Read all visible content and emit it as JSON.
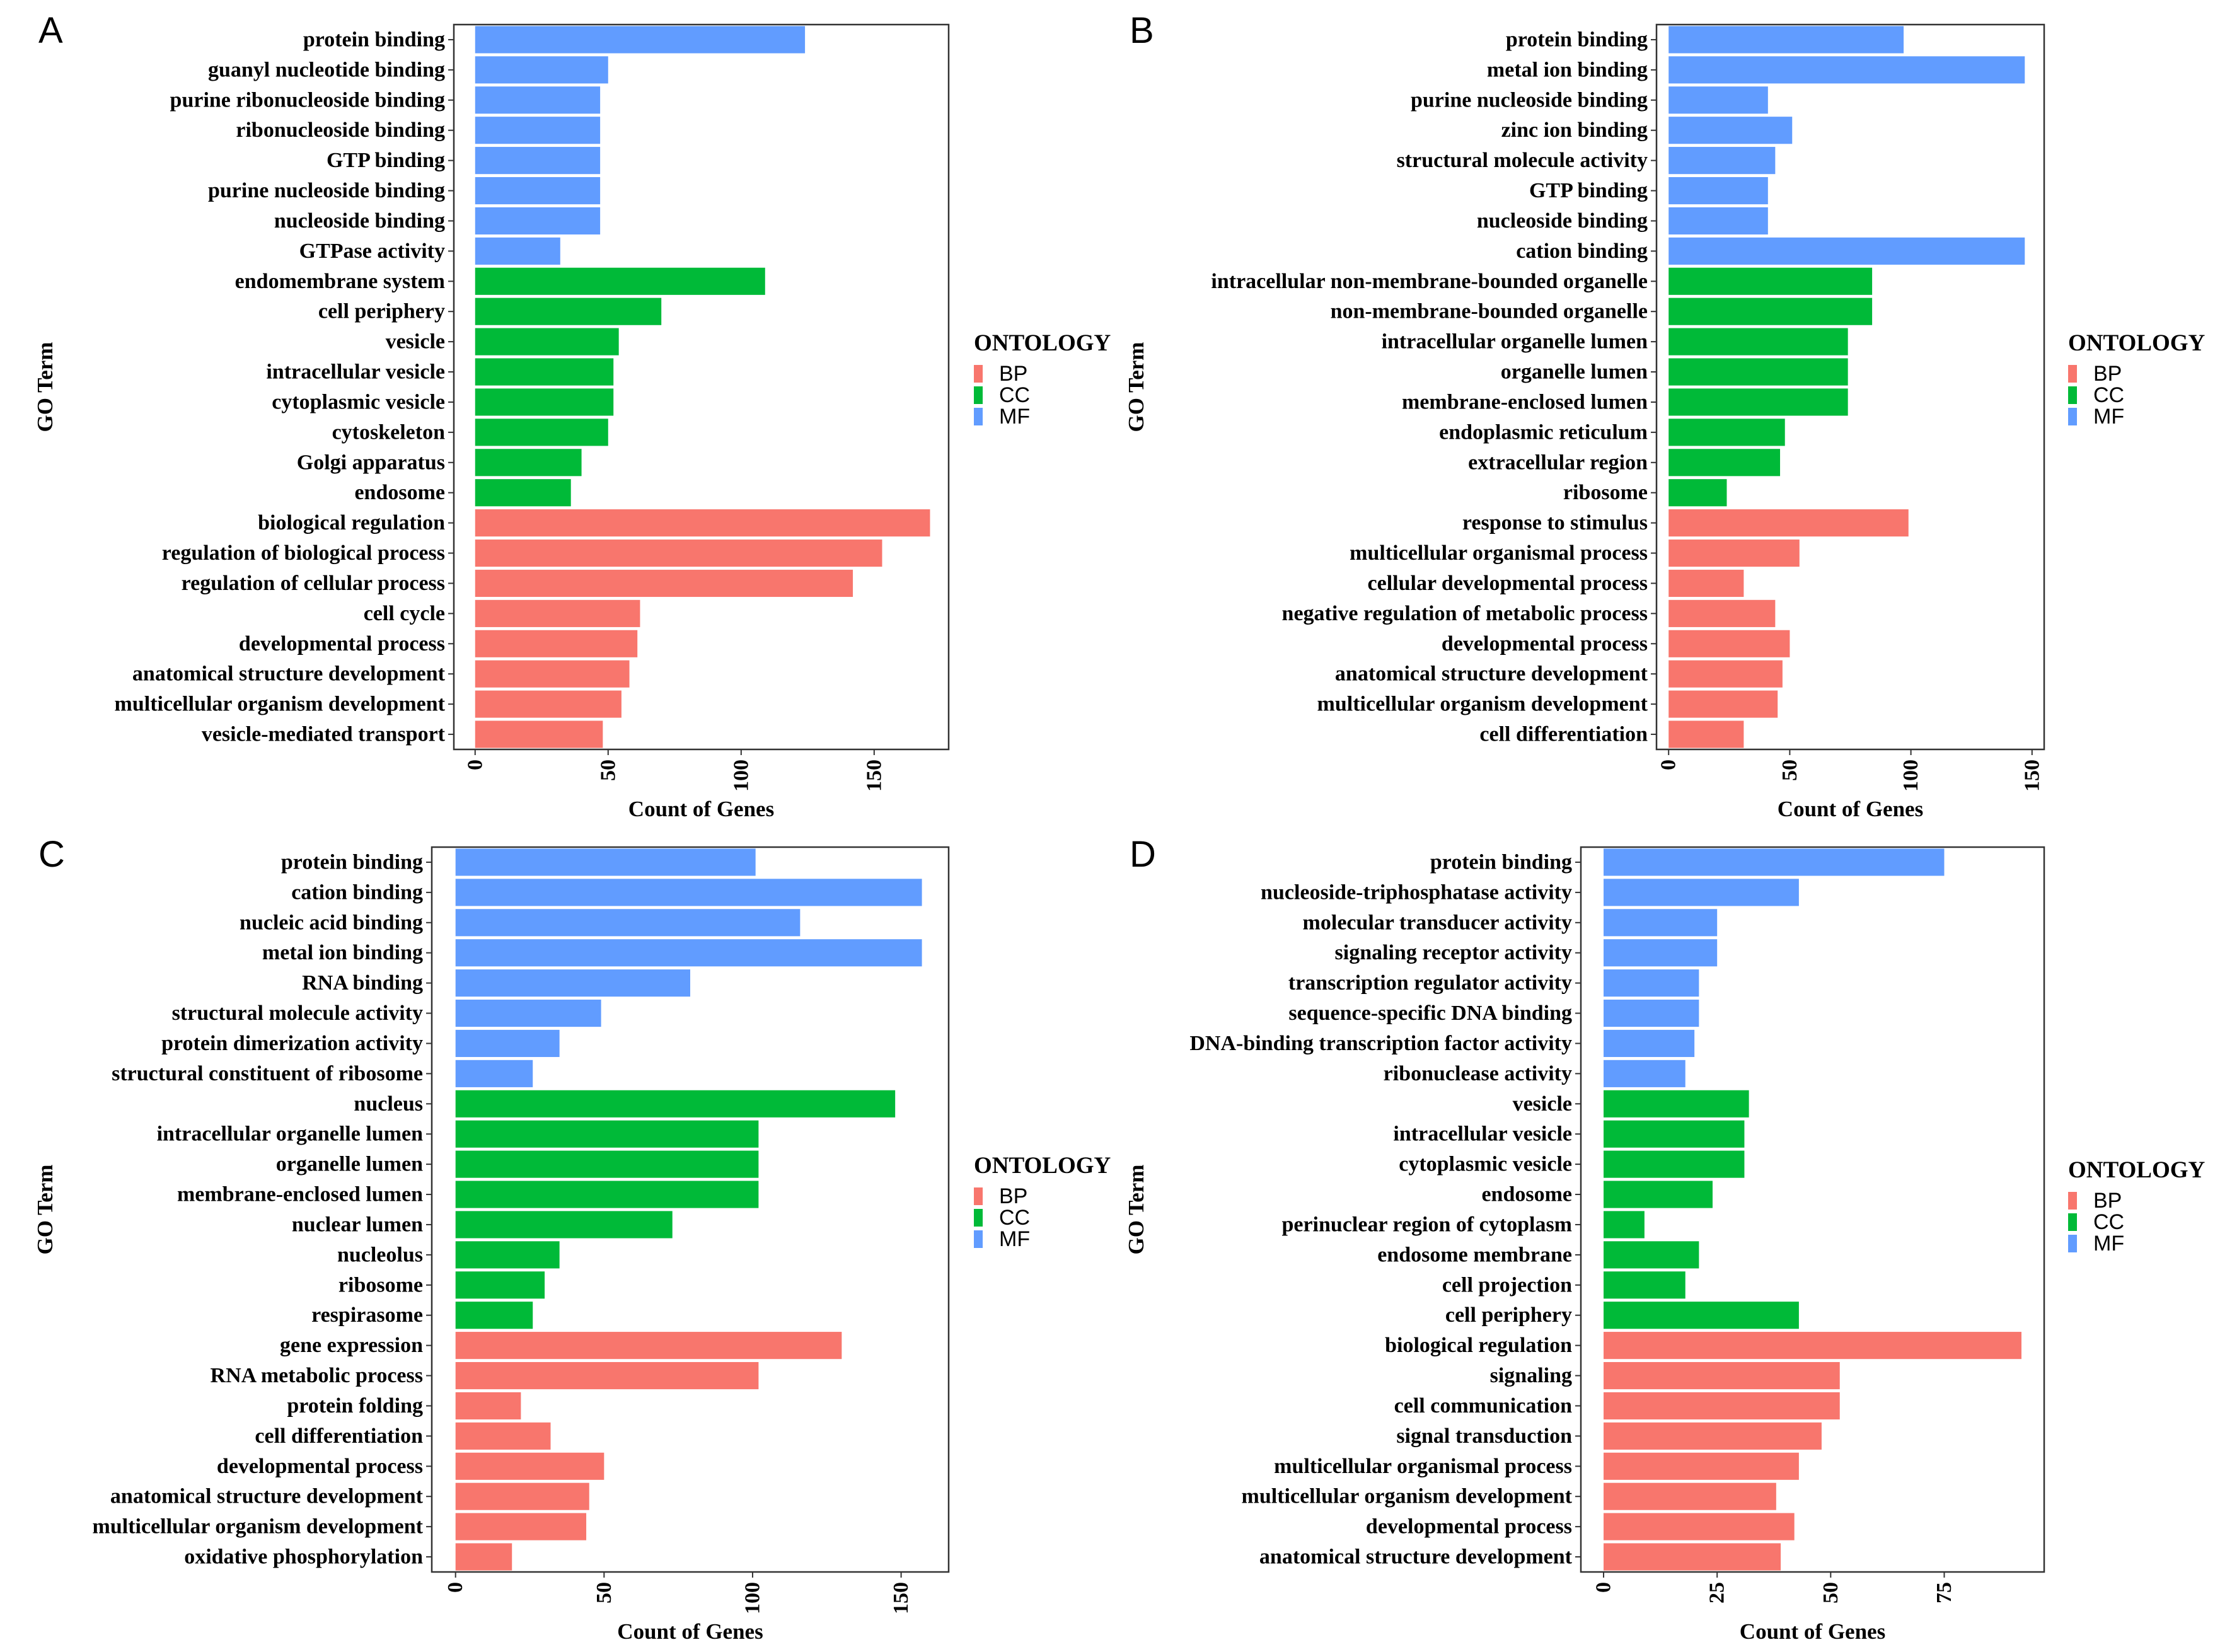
{
  "colors": {
    "BP": "#F8766D",
    "CC": "#00BA38",
    "MF": "#619CFF"
  },
  "legend": {
    "title": "ONTOLOGY",
    "items": [
      "BP",
      "CC",
      "MF"
    ]
  },
  "chart_data": [
    {
      "panel": "A",
      "type": "bar",
      "orientation": "horizontal",
      "xlabel": "Count of Genes",
      "ylabel": "GO Term",
      "xlim": [
        -8,
        178
      ],
      "xticks": [
        0,
        50,
        100,
        150
      ],
      "categories": [
        "protein binding",
        "guanyl nucleotide binding",
        "purine ribonucleoside binding",
        "ribonucleoside binding",
        "GTP binding",
        "purine nucleoside binding",
        "nucleoside binding",
        "GTPase activity",
        "endomembrane system",
        "cell periphery",
        "vesicle",
        "intracellular vesicle",
        "cytoplasmic vesicle",
        "cytoskeleton",
        "Golgi apparatus",
        "endosome",
        "biological regulation",
        "regulation of biological process",
        "regulation of cellular process",
        "cell cycle",
        "developmental process",
        "anatomical structure development",
        "multicellular organism development",
        "vesicle-mediated transport"
      ],
      "values": [
        124,
        50,
        47,
        47,
        47,
        47,
        47,
        32,
        109,
        70,
        54,
        52,
        52,
        50,
        40,
        36,
        171,
        153,
        142,
        62,
        61,
        58,
        55,
        48
      ],
      "ontology": [
        "MF",
        "MF",
        "MF",
        "MF",
        "MF",
        "MF",
        "MF",
        "MF",
        "CC",
        "CC",
        "CC",
        "CC",
        "CC",
        "CC",
        "CC",
        "CC",
        "BP",
        "BP",
        "BP",
        "BP",
        "BP",
        "BP",
        "BP",
        "BP"
      ]
    },
    {
      "panel": "B",
      "type": "bar",
      "orientation": "horizontal",
      "xlabel": "Count of Genes",
      "ylabel": "GO Term",
      "xlim": [
        -5,
        155
      ],
      "xticks": [
        0,
        50,
        100,
        150
      ],
      "categories": [
        "protein binding",
        "metal ion binding",
        "purine nucleoside binding",
        "zinc ion binding",
        "structural molecule activity",
        "GTP binding",
        "nucleoside binding",
        "cation binding",
        "intracellular non-membrane-bounded organelle",
        "non-membrane-bounded organelle",
        "intracellular organelle lumen",
        "organelle lumen",
        "membrane-enclosed lumen",
        "endoplasmic reticulum",
        "extracellular region",
        "ribosome",
        "response to stimulus",
        "multicellular organismal process",
        "cellular developmental process",
        "negative regulation of metabolic process",
        "developmental process",
        "anatomical structure development",
        "multicellular organism development",
        "cell differentiation"
      ],
      "values": [
        97,
        147,
        41,
        51,
        44,
        41,
        41,
        147,
        84,
        84,
        74,
        74,
        74,
        48,
        46,
        24,
        99,
        54,
        31,
        44,
        50,
        47,
        45,
        31
      ],
      "ontology": [
        "MF",
        "MF",
        "MF",
        "MF",
        "MF",
        "MF",
        "MF",
        "MF",
        "CC",
        "CC",
        "CC",
        "CC",
        "CC",
        "CC",
        "CC",
        "CC",
        "BP",
        "BP",
        "BP",
        "BP",
        "BP",
        "BP",
        "BP",
        "BP"
      ]
    },
    {
      "panel": "C",
      "type": "bar",
      "orientation": "horizontal",
      "xlabel": "Count of Genes",
      "ylabel": "GO Term",
      "xlim": [
        -8,
        166
      ],
      "xticks": [
        0,
        50,
        100,
        150
      ],
      "categories": [
        "protein binding",
        "cation binding",
        "nucleic acid binding",
        "metal ion binding",
        "RNA binding",
        "structural molecule activity",
        "protein dimerization activity",
        "structural constituent of ribosome",
        "nucleus",
        "intracellular organelle lumen",
        "organelle lumen",
        "membrane-enclosed lumen",
        "nuclear lumen",
        "nucleolus",
        "ribosome",
        "respirasome",
        "gene expression",
        "RNA metabolic process",
        "protein folding",
        "cell differentiation",
        "developmental process",
        "anatomical structure development",
        "multicellular organism development",
        "oxidative phosphorylation"
      ],
      "values": [
        101,
        157,
        116,
        157,
        79,
        49,
        35,
        26,
        148,
        102,
        102,
        102,
        73,
        35,
        30,
        26,
        130,
        102,
        22,
        32,
        50,
        45,
        44,
        19
      ],
      "ontology": [
        "MF",
        "MF",
        "MF",
        "MF",
        "MF",
        "MF",
        "MF",
        "MF",
        "CC",
        "CC",
        "CC",
        "CC",
        "CC",
        "CC",
        "CC",
        "CC",
        "BP",
        "BP",
        "BP",
        "BP",
        "BP",
        "BP",
        "BP",
        "BP"
      ]
    },
    {
      "panel": "D",
      "type": "bar",
      "orientation": "horizontal",
      "xlabel": "Count of Genes",
      "ylabel": "GO Term",
      "xlim": [
        -5,
        97
      ],
      "xticks": [
        0,
        25,
        50,
        75
      ],
      "categories": [
        "protein binding",
        "nucleoside-triphosphatase activity",
        "molecular transducer activity",
        "signaling receptor activity",
        "transcription regulator activity",
        "sequence-specific DNA binding",
        "DNA-binding transcription factor activity",
        "ribonuclease activity",
        "vesicle",
        "intracellular vesicle",
        "cytoplasmic vesicle",
        "endosome",
        "perinuclear region of cytoplasm",
        "endosome membrane",
        "cell projection",
        "cell periphery",
        "biological regulation",
        "signaling",
        "cell communication",
        "signal transduction",
        "multicellular organismal process",
        "multicellular organism development",
        "developmental process",
        "anatomical structure development"
      ],
      "values": [
        75,
        43,
        25,
        25,
        21,
        21,
        20,
        18,
        32,
        31,
        31,
        24,
        9,
        21,
        18,
        43,
        92,
        52,
        52,
        48,
        43,
        38,
        42,
        39
      ],
      "ontology": [
        "MF",
        "MF",
        "MF",
        "MF",
        "MF",
        "MF",
        "MF",
        "MF",
        "CC",
        "CC",
        "CC",
        "CC",
        "CC",
        "CC",
        "CC",
        "CC",
        "BP",
        "BP",
        "BP",
        "BP",
        "BP",
        "BP",
        "BP",
        "BP"
      ]
    }
  ]
}
